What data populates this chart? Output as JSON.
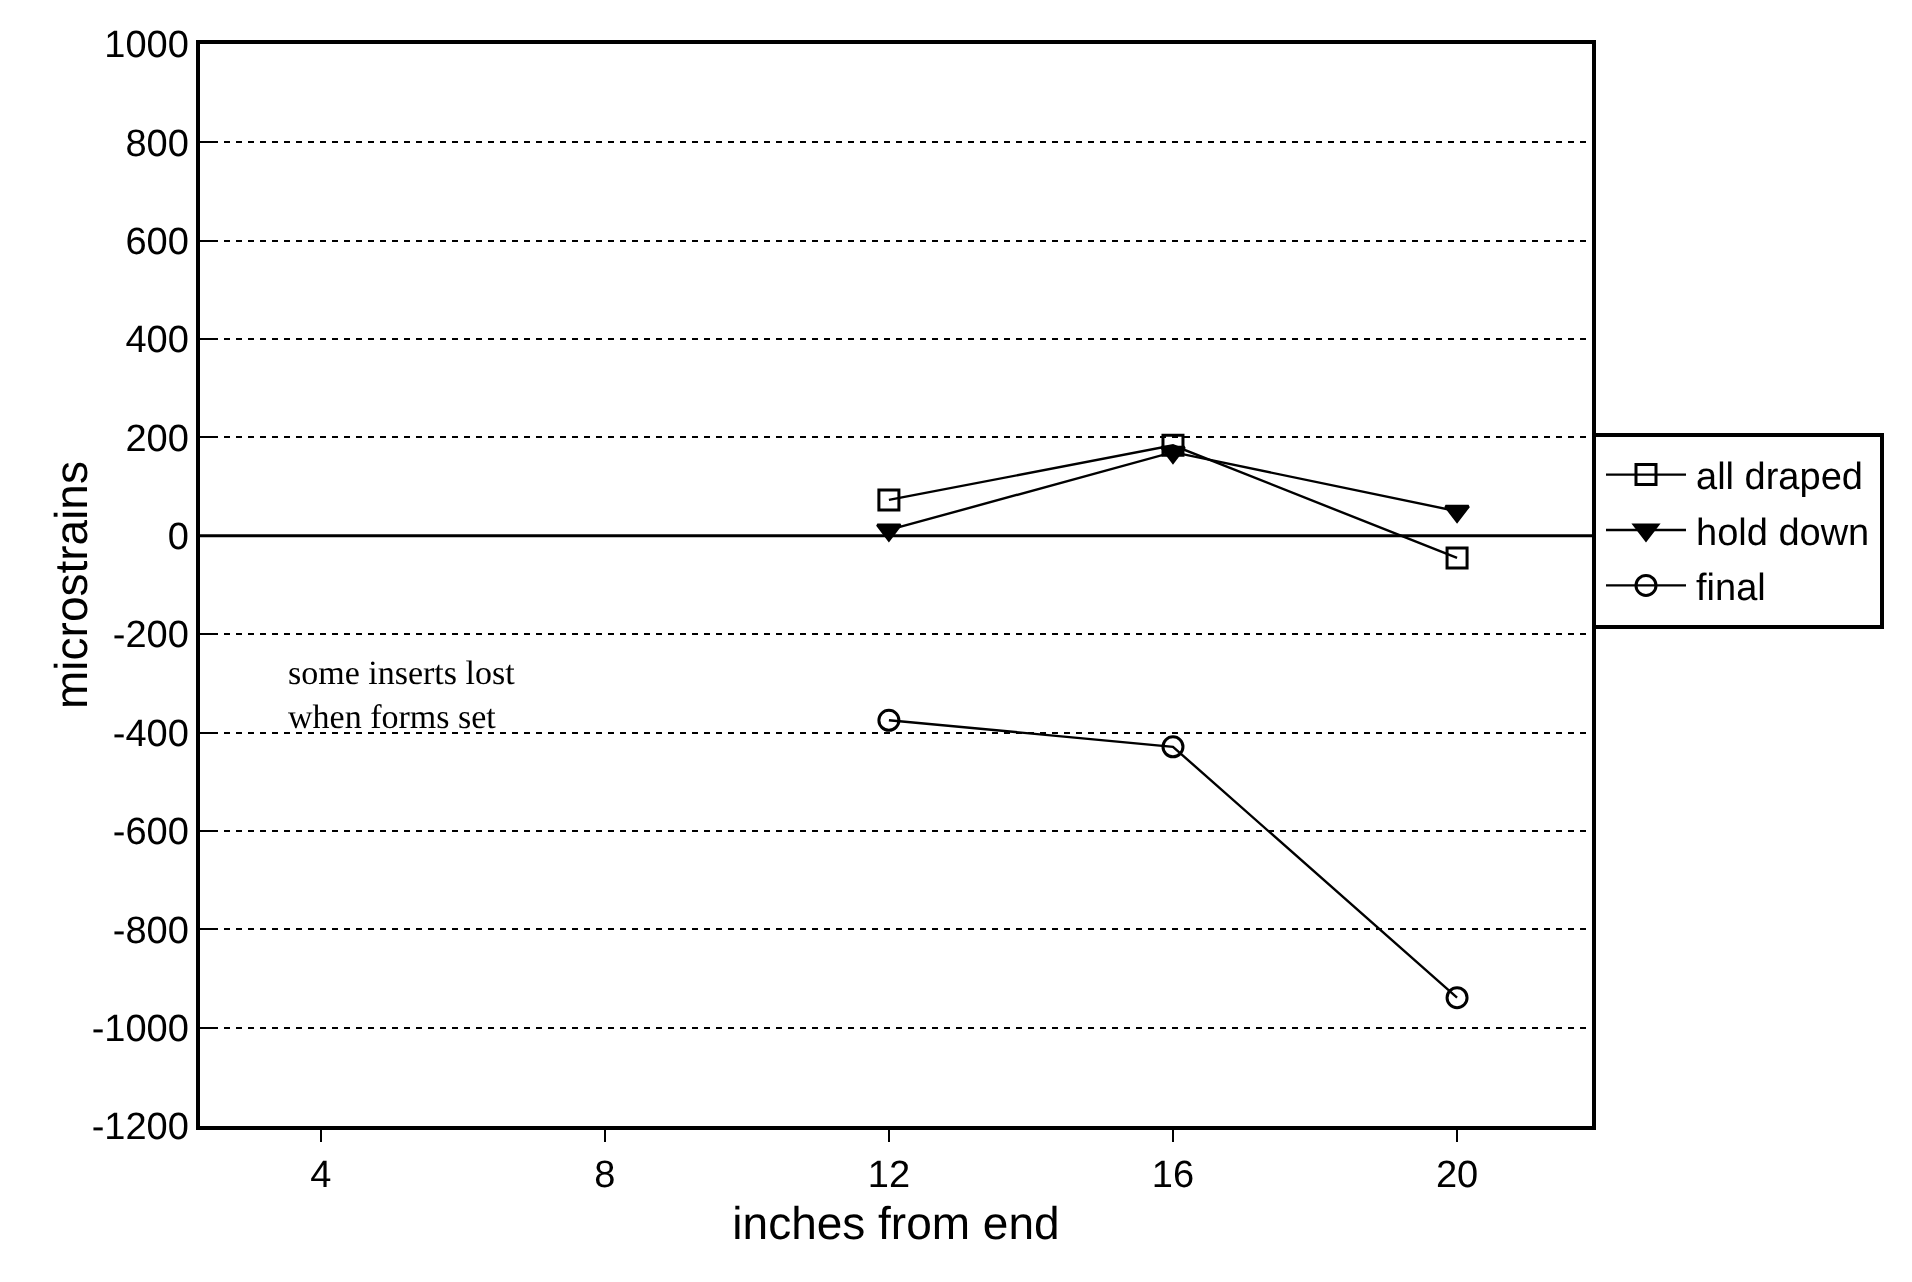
{
  "chart_data": {
    "type": "line",
    "xlabel": "inches from end",
    "ylabel": "microstrains",
    "xlim": [
      2.3,
      21.9
    ],
    "xticks": [
      4,
      8,
      12,
      16,
      20
    ],
    "ylim": [
      -1200,
      1000
    ],
    "yticks": [
      -1200,
      -1000,
      -800,
      -600,
      -400,
      -200,
      0,
      200,
      400,
      600,
      800,
      1000
    ],
    "x": [
      12,
      16,
      20
    ],
    "series": [
      {
        "name": "all draped",
        "color": "#000000",
        "marker": "square",
        "values": [
          73,
          184,
          -45
        ]
      },
      {
        "name": "hold down",
        "color": "#000000",
        "marker": "triangle",
        "values": [
          12,
          170,
          50
        ]
      },
      {
        "name": "final",
        "color": "#000000",
        "marker": "circle",
        "values": [
          -375,
          -429,
          -939
        ]
      }
    ],
    "grid": "y",
    "legend": "right",
    "line_style": "solid",
    "ref_lines": [
      {
        "axis": "y",
        "value": 0,
        "color": "#000000"
      }
    ],
    "annotations": [
      "some inserts lost\nwhen forms set"
    ]
  }
}
